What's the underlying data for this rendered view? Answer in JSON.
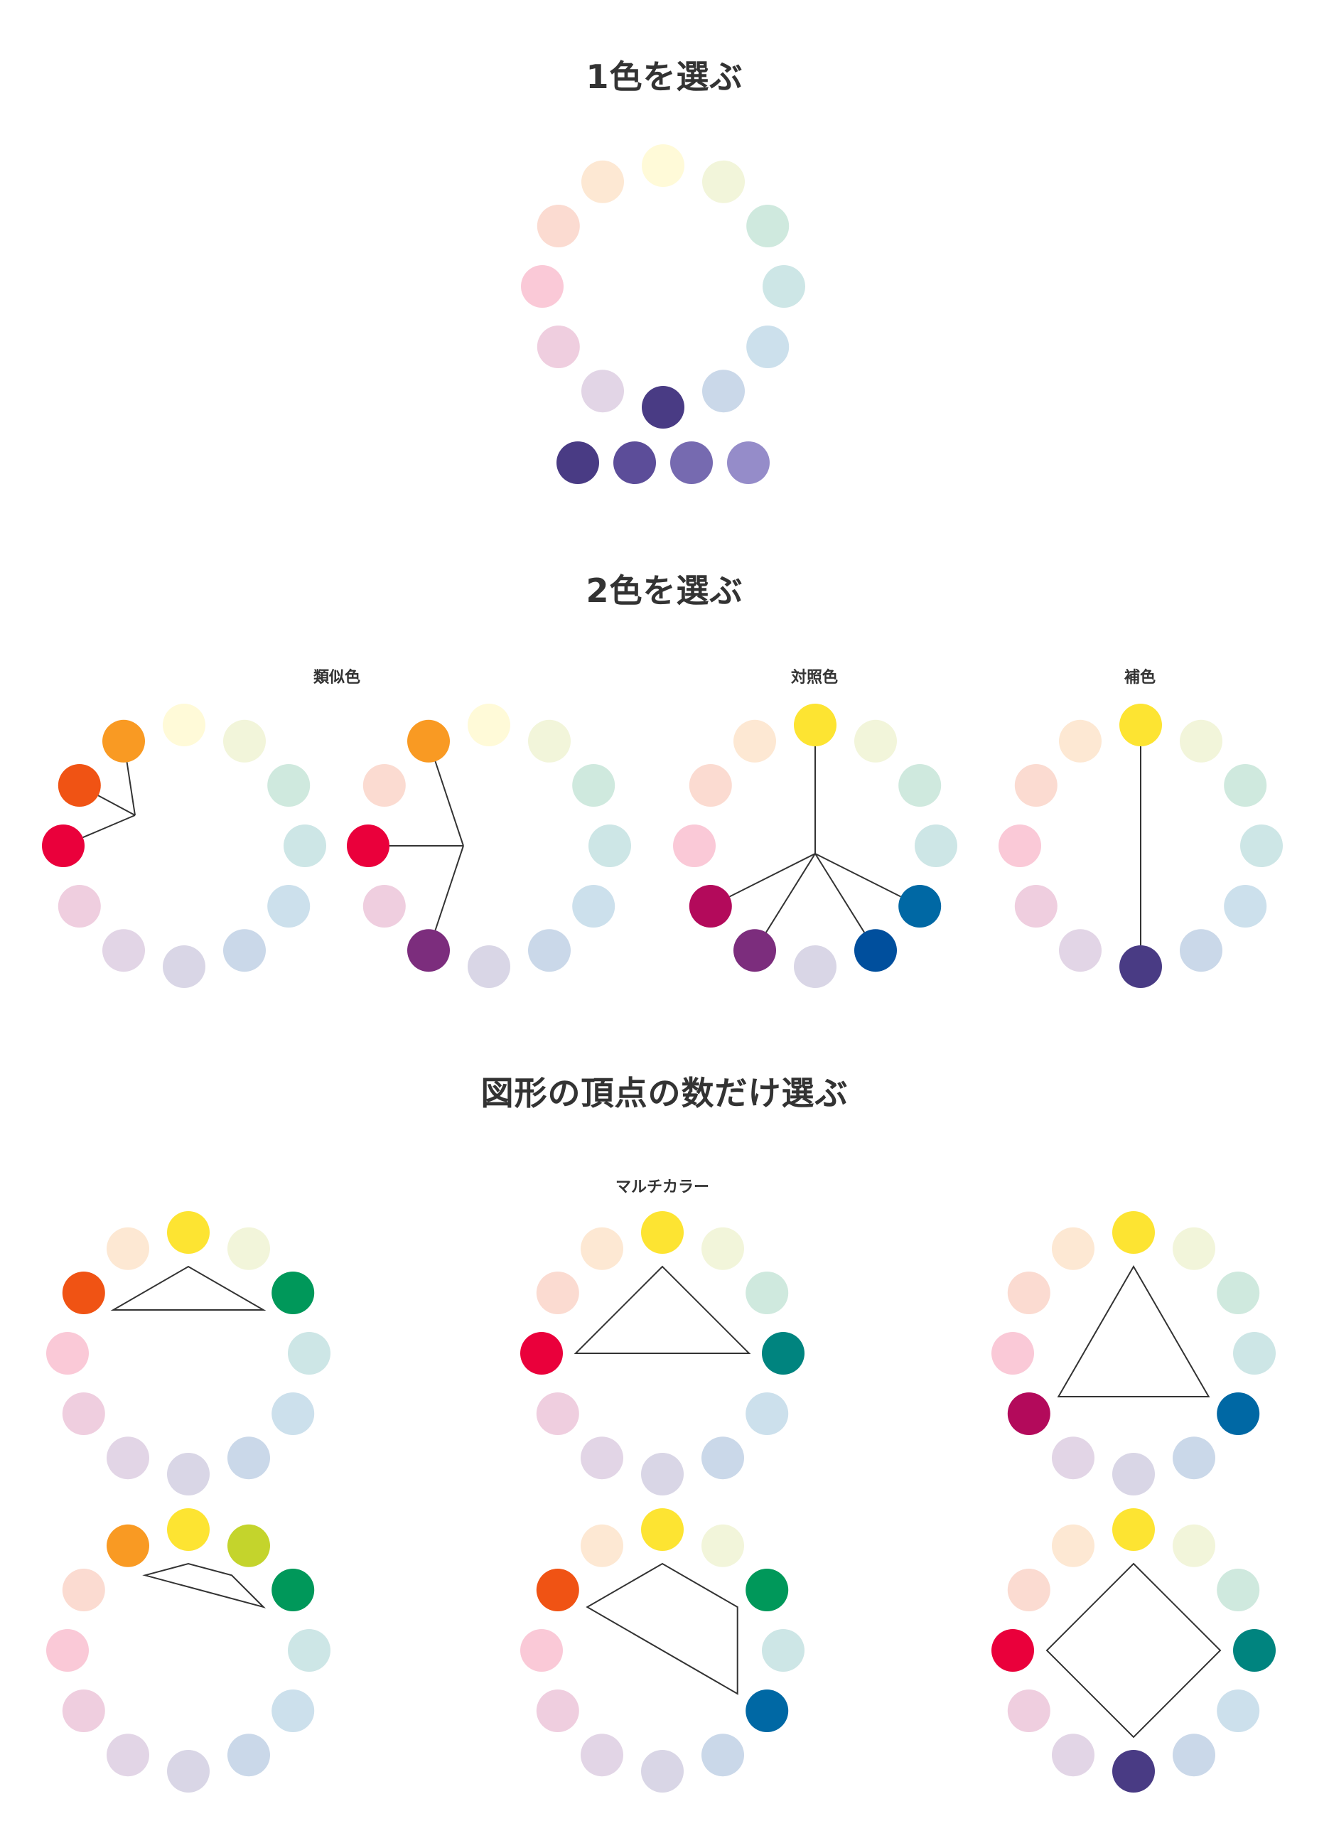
{
  "sections": {
    "one_color": {
      "title": "1色を選ぶ"
    },
    "two_colors": {
      "title": "2色を選ぶ",
      "labels": {
        "analogous": "類似色",
        "contrast": "対照色",
        "complementary": "補色"
      }
    },
    "polygon": {
      "title": "図形の頂点の数だけ選ぶ",
      "labels": {
        "multicolor": "マルチカラー"
      }
    }
  },
  "palette": {
    "full": [
      "#fde432",
      "#c4d42c",
      "#00985a",
      "#00847f",
      "#0068a4",
      "#004f9d",
      "#493b84",
      "#7c2d7d",
      "#b30a5b",
      "#ea003b",
      "#f05314",
      "#f99a23"
    ],
    "pale": [
      "#fffad8",
      "#f2f5da",
      "#cfe9de",
      "#cde6e6",
      "#cce0ec",
      "#cad8e9",
      "#d9d6e6",
      "#e2d5e6",
      "#efcedf",
      "#fac9d7",
      "#fbdbd1",
      "#fde8d3"
    ],
    "tints": [
      "#493b84",
      "#5c4d99",
      "#766ab0",
      "#958cc9"
    ]
  },
  "wheels": [
    {
      "id": "one-color",
      "selected": [
        6
      ],
      "tints": true
    },
    {
      "id": "analogous-1",
      "selected": [
        11,
        10,
        9
      ],
      "lines": "hub"
    },
    {
      "id": "analogous-2",
      "selected": [
        11,
        9,
        7
      ],
      "lines": "hub"
    },
    {
      "id": "contrast",
      "selected": [
        0,
        8,
        7,
        5,
        4
      ],
      "lines": "hub"
    },
    {
      "id": "complementary",
      "selected": [
        0,
        6
      ],
      "lines": "chord"
    },
    {
      "id": "triad-1",
      "selected": [
        0,
        10,
        2
      ],
      "lines": "polygon"
    },
    {
      "id": "triad-2",
      "selected": [
        0,
        9,
        3
      ],
      "lines": "polygon"
    },
    {
      "id": "triad-3",
      "selected": [
        0,
        8,
        4
      ],
      "lines": "polygon"
    },
    {
      "id": "tetrad-1",
      "selected": [
        11,
        0,
        1,
        2
      ],
      "lines": "polygon"
    },
    {
      "id": "tetrad-2",
      "selected": [
        10,
        0,
        2,
        4
      ],
      "lines": "polygon"
    },
    {
      "id": "tetrad-3",
      "selected": [
        0,
        3,
        6,
        9
      ],
      "lines": "polygon"
    }
  ]
}
